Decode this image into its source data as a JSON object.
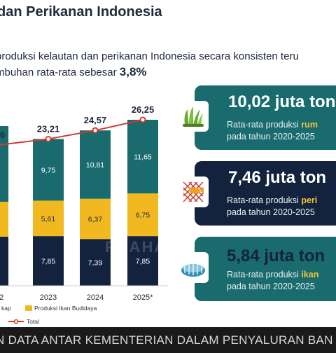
{
  "header": {
    "title": "dan Perikanan Indonesia",
    "subtitle_line1": "produksi kelautan dan perikanan Indonesia secara konsisten teru",
    "subtitle_line2_prefix": "mbuhan rata-rata sebesar ",
    "subtitle_line2_value": "3,8%"
  },
  "chart_data": {
    "type": "bar",
    "stacked": true,
    "categories": [
      "2",
      "2023",
      "2024",
      "2025*"
    ],
    "series": [
      {
        "name": "kap",
        "color": "#13233d",
        "values": [
          null,
          7.85,
          7.39,
          7.85
        ]
      },
      {
        "name": "Produksi Ikan Budidaya",
        "color": "#f1b820",
        "values": [
          null,
          5.61,
          6.37,
          6.75
        ]
      },
      {
        "name": "",
        "color": "#1a6b6e",
        "values": [
          null,
          9.75,
          10.81,
          11.65
        ]
      }
    ],
    "total": {
      "name": "Total",
      "color": "#d13a30",
      "values": [
        "6",
        "23,21",
        "24,57",
        "26,25"
      ]
    },
    "segment_labels": {
      "bottom": [
        "",
        "7,85",
        "7,39",
        "7,85"
      ],
      "middle": [
        "",
        "5,61",
        "6,37",
        "6,75"
      ],
      "top": [
        "",
        "9,75",
        "10,81",
        "11,65"
      ]
    }
  },
  "cards": [
    {
      "value": "10,02 juta ton",
      "line1_prefix": "Rata-rata produksi ",
      "line1_bold": "rum",
      "line2": "pada tahun 2020-2025",
      "icon": "seaweed-icon"
    },
    {
      "value": "7,46 juta ton",
      "line1_prefix": "Rata-rata produksi ",
      "line1_bold": "peri",
      "line2": "pada tahun 2020-2025",
      "icon": "fish-net-icon"
    },
    {
      "value": "5,84 juta ton",
      "line1_prefix": "Rata-rata produksi ",
      "line1_bold": "ikan",
      "line2": "pada tahun 2020-2025",
      "icon": "fish-pond-icon"
    }
  ],
  "watermark": "PRAHARA",
  "ticker": "N DATA ANTAR KEMENTERIAN DALAM PENYALURAN BAN"
}
